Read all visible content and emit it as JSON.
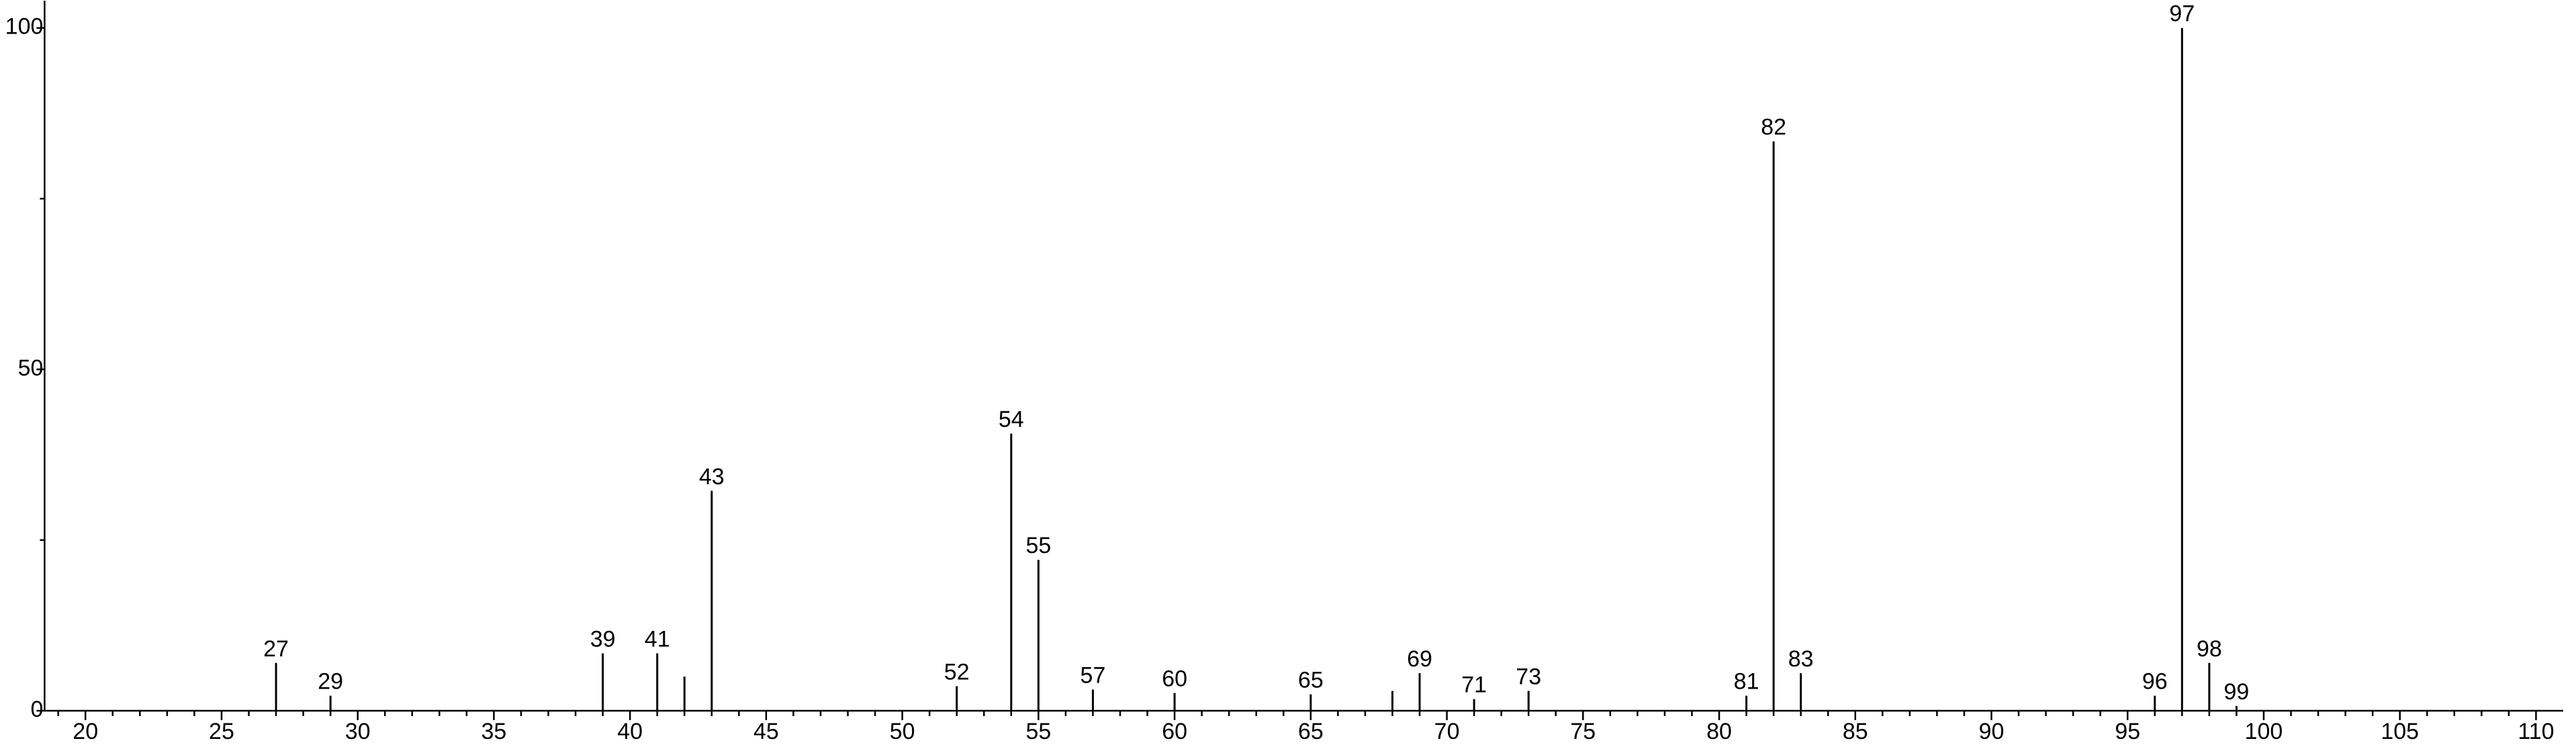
{
  "chart_data": {
    "type": "stem",
    "x": [
      27,
      29,
      39,
      41,
      42,
      43,
      52,
      54,
      55,
      57,
      60,
      65,
      68,
      69,
      71,
      73,
      81,
      82,
      83,
      96,
      97,
      98,
      99
    ],
    "values": [
      7,
      2.2,
      8.4,
      8.4,
      5,
      32.2,
      3.6,
      40.6,
      22.1,
      3.1,
      2.6,
      2.4,
      2.9,
      5.5,
      1.7,
      2.9,
      2.2,
      83.4,
      5.5,
      2.2,
      100,
      7,
      0.7
    ],
    "labels": [
      "27",
      "29",
      "39",
      "41",
      null,
      "43",
      "52",
      "54",
      "55",
      "57",
      "60",
      "65",
      null,
      "69",
      "71",
      "73",
      "81",
      "82",
      "83",
      "96",
      "97",
      "98",
      "99"
    ],
    "color": "#000000",
    "xlim": [
      18.5,
      111
    ],
    "ylim": [
      0,
      104
    ],
    "xticks": [
      20,
      25,
      30,
      35,
      40,
      45,
      50,
      55,
      60,
      65,
      70,
      75,
      80,
      85,
      90,
      95,
      100,
      105,
      110
    ],
    "xminor_ticks": [
      19,
      21,
      22,
      23,
      24,
      26,
      27,
      28,
      29,
      31,
      32,
      33,
      34,
      36,
      37,
      38,
      39,
      41,
      42,
      43,
      44,
      46,
      47,
      48,
      49,
      51,
      52,
      53,
      54,
      56,
      57,
      58,
      59,
      61,
      62,
      63,
      64,
      66,
      67,
      68,
      69,
      71,
      72,
      73,
      74,
      76,
      77,
      78,
      79,
      81,
      82,
      83,
      84,
      86,
      87,
      88,
      89,
      91,
      92,
      93,
      94,
      96,
      97,
      98,
      99,
      101,
      102,
      103,
      104,
      106,
      107,
      108,
      109
    ],
    "yticks": [
      0,
      50,
      100
    ],
    "yminor_ticks": [
      25,
      75
    ]
  }
}
